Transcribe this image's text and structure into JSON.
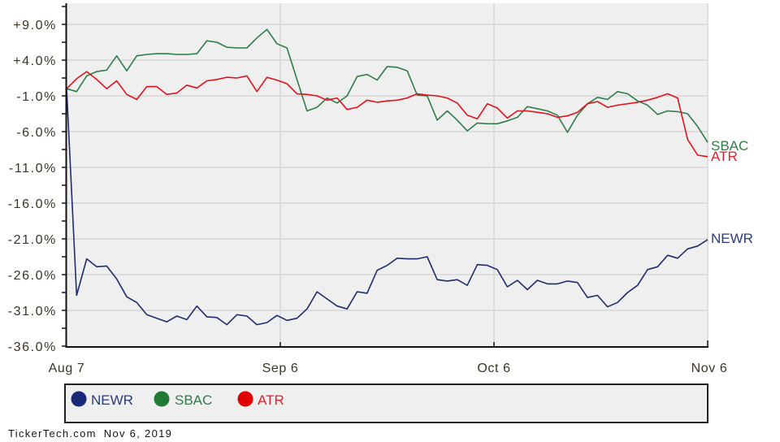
{
  "chart_data": {
    "type": "line",
    "title": "",
    "xlabel": "",
    "ylabel": "",
    "ylim": [
      -36.0,
      12.0
    ],
    "grid": true,
    "legend_position": "bottom",
    "y_tick_labels": [
      "+9.0%",
      "+4.0%",
      "-1.0%",
      "-6.0%",
      "-11.0%",
      "-16.0%",
      "-21.0%",
      "-26.0%",
      "-31.0%",
      "-36.0%"
    ],
    "y_tick_values": [
      9.0,
      4.0,
      -1.0,
      -6.0,
      -11.0,
      -16.0,
      -21.0,
      -26.0,
      -31.0,
      -36.0
    ],
    "x_tick_labels": [
      "Aug 7",
      "Sep 6",
      "Oct 6",
      "Nov 6"
    ],
    "x": [
      "Aug 7",
      "Aug 8",
      "Aug 9",
      "Aug 12",
      "Aug 13",
      "Aug 14",
      "Aug 15",
      "Aug 16",
      "Aug 19",
      "Aug 20",
      "Aug 21",
      "Aug 22",
      "Aug 23",
      "Aug 26",
      "Aug 27",
      "Aug 28",
      "Aug 29",
      "Aug 30",
      "Sep 3",
      "Sep 4",
      "Sep 5",
      "Sep 6",
      "Sep 9",
      "Sep 10",
      "Sep 11",
      "Sep 12",
      "Sep 13",
      "Sep 16",
      "Sep 17",
      "Sep 18",
      "Sep 19",
      "Sep 20",
      "Sep 23",
      "Sep 24",
      "Sep 25",
      "Sep 26",
      "Sep 27",
      "Sep 30",
      "Oct 1",
      "Oct 2",
      "Oct 3",
      "Oct 4",
      "Oct 7",
      "Oct 8",
      "Oct 9",
      "Oct 10",
      "Oct 11",
      "Oct 14",
      "Oct 15",
      "Oct 16",
      "Oct 17",
      "Oct 18",
      "Oct 21",
      "Oct 22",
      "Oct 23",
      "Oct 24",
      "Oct 25",
      "Oct 28",
      "Oct 29",
      "Oct 30",
      "Oct 31",
      "Nov 1",
      "Nov 4",
      "Nov 5",
      "Nov 6"
    ],
    "series": [
      {
        "name": "NEWR",
        "color": "#1f2d6e",
        "end_label_color": "#2b3a7e",
        "values": [
          0.0,
          -28.9,
          -23.8,
          -24.9,
          -24.8,
          -26.6,
          -29.1,
          -29.9,
          -31.6,
          -32.1,
          -32.6,
          -31.8,
          -32.3,
          -30.4,
          -31.9,
          -32.0,
          -33.0,
          -31.6,
          -31.8,
          -33.0,
          -32.7,
          -31.7,
          -32.4,
          -32.1,
          -30.8,
          -28.4,
          -29.4,
          -30.4,
          -30.8,
          -28.4,
          -28.6,
          -25.4,
          -24.7,
          -23.7,
          -23.8,
          -23.8,
          -23.5,
          -26.7,
          -26.9,
          -26.7,
          -27.5,
          -24.6,
          -24.7,
          -25.3,
          -27.7,
          -26.8,
          -28.1,
          -26.8,
          -27.3,
          -27.3,
          -26.9,
          -27.1,
          -29.2,
          -28.9,
          -30.5,
          -29.9,
          -28.5,
          -27.5,
          -25.3,
          -24.9,
          -23.3,
          -23.7,
          -22.4,
          -22.0,
          -21.1
        ]
      },
      {
        "name": "SBAC",
        "color": "#2f7d48",
        "end_label_color": "#2f7d48",
        "values": [
          0.0,
          -0.4,
          1.8,
          2.4,
          2.6,
          4.6,
          2.5,
          4.6,
          4.8,
          4.9,
          4.9,
          4.8,
          4.8,
          4.9,
          6.7,
          6.5,
          5.8,
          5.7,
          5.7,
          7.1,
          8.3,
          6.3,
          5.7,
          1.3,
          -3.1,
          -2.6,
          -1.3,
          -2.0,
          -1.0,
          1.7,
          2.0,
          1.2,
          3.1,
          3.0,
          2.5,
          -0.9,
          -1.0,
          -4.4,
          -3.1,
          -4.4,
          -5.9,
          -4.8,
          -4.9,
          -4.9,
          -4.5,
          -4.0,
          -2.5,
          -2.8,
          -3.1,
          -3.7,
          -6.1,
          -3.7,
          -2.1,
          -1.2,
          -1.5,
          -0.4,
          -0.7,
          -1.7,
          -2.3,
          -3.6,
          -3.1,
          -3.2,
          -3.5,
          -5.3,
          -7.5
        ]
      },
      {
        "name": "ATR",
        "color": "#e0121c",
        "end_label_color": "#e0202a",
        "values": [
          0.0,
          1.4,
          2.4,
          1.3,
          0.0,
          1.1,
          -0.8,
          -1.5,
          0.3,
          0.3,
          -0.8,
          -0.6,
          0.5,
          0.1,
          1.1,
          1.3,
          1.6,
          1.5,
          1.8,
          -0.4,
          1.6,
          1.2,
          0.7,
          -0.7,
          -0.8,
          -1.0,
          -1.6,
          -1.3,
          -2.9,
          -2.6,
          -1.6,
          -1.9,
          -1.7,
          -1.6,
          -1.3,
          -0.7,
          -0.9,
          -1.0,
          -1.3,
          -2.0,
          -3.7,
          -4.2,
          -2.1,
          -2.7,
          -4.1,
          -3.1,
          -3.1,
          -3.3,
          -3.5,
          -4.0,
          -3.8,
          -3.3,
          -2.1,
          -1.8,
          -2.6,
          -2.3,
          -2.1,
          -1.9,
          -1.6,
          -1.2,
          -0.7,
          -1.3,
          -7.1,
          -9.3,
          -9.5
        ]
      }
    ]
  },
  "end_labels": {
    "newr": "NEWR",
    "sbac": "SBAC",
    "atr": "ATR"
  },
  "legend": {
    "items": [
      {
        "label": "NEWR",
        "color": "#1b2a78",
        "text_color": "#2b3a7e"
      },
      {
        "label": "SBAC",
        "color": "#1e7a34",
        "text_color": "#2f7d48"
      },
      {
        "label": "ATR",
        "color": "#e00000",
        "text_color": "#e0202a"
      }
    ]
  },
  "footer": {
    "source": "TickerTech.com",
    "date": "Nov 6, 2019"
  }
}
